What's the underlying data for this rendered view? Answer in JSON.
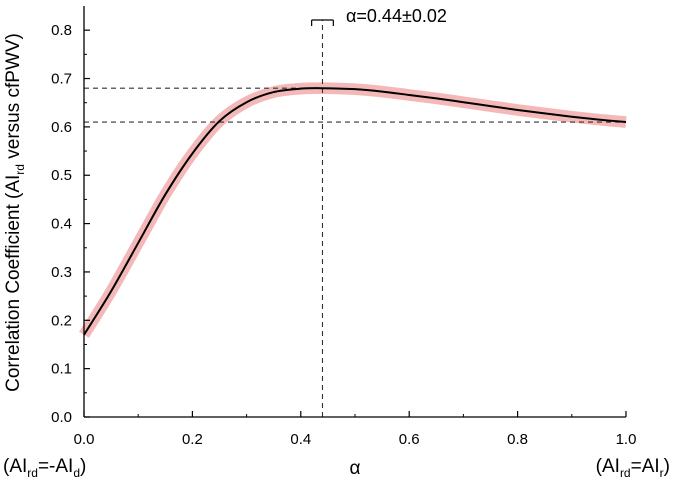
{
  "chart_data": {
    "type": "line",
    "xlabel": "α",
    "ylabel_main": "Correlation Coefficient (AI",
    "ylabel_sub": "rd",
    "ylabel_tail": " versus cfPWV)",
    "xlim": [
      0,
      1
    ],
    "ylim": [
      0,
      0.85
    ],
    "x_ticks": [
      0.0,
      0.2,
      0.4,
      0.6,
      0.8,
      1.0
    ],
    "x_tick_labels": [
      "0.0",
      "0.2",
      "0.4",
      "0.6",
      "0.8",
      "1.0"
    ],
    "y_ticks": [
      0.0,
      0.1,
      0.2,
      0.3,
      0.4,
      0.5,
      0.6,
      0.7,
      0.8
    ],
    "y_tick_labels": [
      "0.0",
      "0.1",
      "0.2",
      "0.3",
      "0.4",
      "0.5",
      "0.6",
      "0.7",
      "0.8"
    ],
    "left_end_label": {
      "pre": "(AI",
      "sub1": "rd",
      "mid": "=-AI",
      "sub2": "d",
      "post": ")"
    },
    "right_end_label": {
      "pre": "(AI",
      "sub1": "rd",
      "mid": "=AI",
      "sub2": "r",
      "post": ")"
    },
    "annotation": "α=0.44±0.02",
    "optimum": {
      "alpha": 0.44,
      "alpha_err": 0.02,
      "peak_r": 0.68,
      "end_r": 0.61
    },
    "grid": false,
    "series": [
      {
        "x": [
          0.0,
          0.05,
          0.1,
          0.15,
          0.2,
          0.25,
          0.3,
          0.35,
          0.4,
          0.44,
          0.5,
          0.55,
          0.6,
          0.65,
          0.7,
          0.75,
          0.8,
          0.85,
          0.9,
          0.95,
          1.0
        ],
        "y": [
          0.17,
          0.26,
          0.36,
          0.46,
          0.545,
          0.612,
          0.651,
          0.672,
          0.679,
          0.68,
          0.678,
          0.673,
          0.666,
          0.659,
          0.651,
          0.643,
          0.635,
          0.628,
          0.621,
          0.615,
          0.61
        ],
        "band": 0.012
      }
    ],
    "colors": {
      "line": "#000000",
      "band": "#f4b8b8",
      "guide": "#333333"
    }
  }
}
